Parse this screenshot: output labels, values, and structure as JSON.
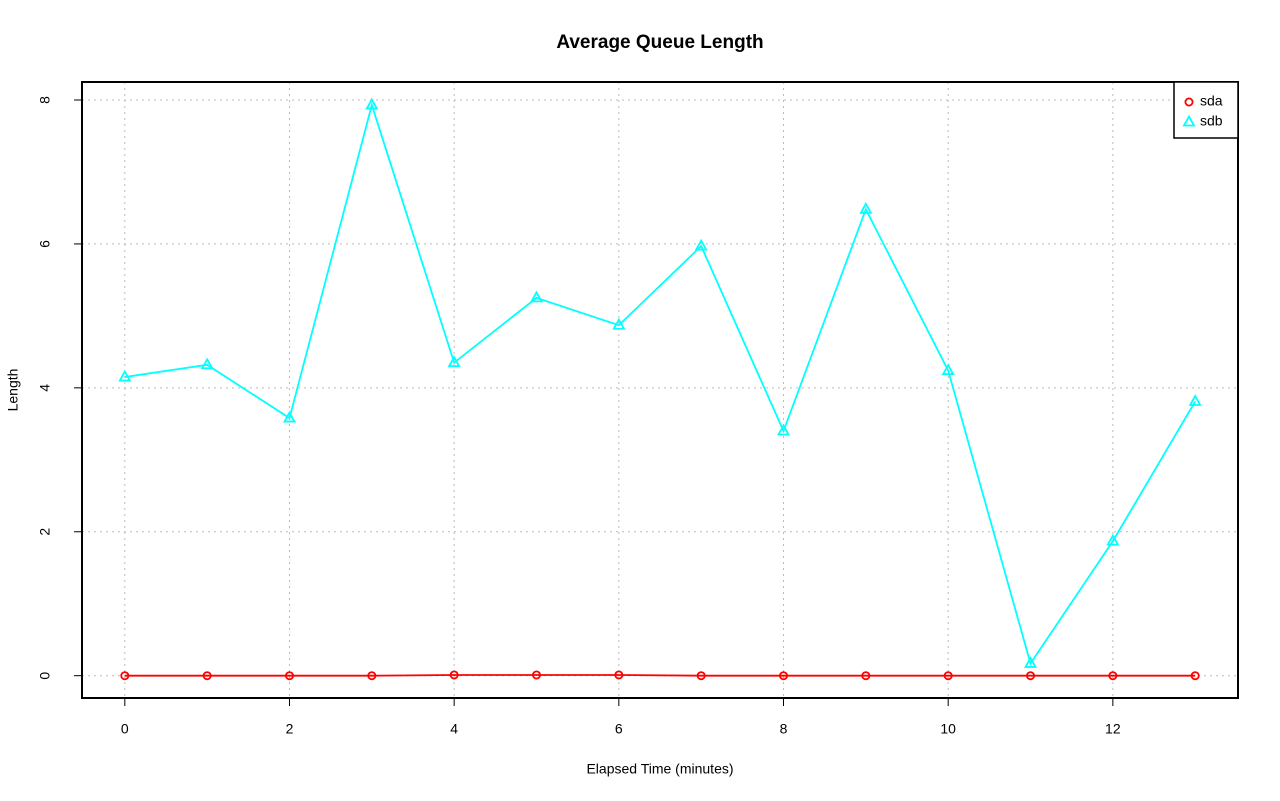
{
  "chart_data": {
    "type": "line",
    "title": "Average Queue Length",
    "xlabel": "Elapsed Time (minutes)",
    "ylabel": "Length",
    "x": [
      0,
      1,
      2,
      3,
      4,
      5,
      6,
      7,
      8,
      9,
      10,
      11,
      12,
      13
    ],
    "series": [
      {
        "name": "sda",
        "color": "#ff0000",
        "marker": "circle",
        "values": [
          0,
          0,
          0,
          0,
          0.01,
          0.01,
          0.01,
          0,
          0,
          0,
          0,
          0,
          0,
          0
        ]
      },
      {
        "name": "sdb",
        "color": "#00ffff",
        "marker": "triangle",
        "values": [
          4.15,
          4.32,
          3.58,
          7.93,
          4.35,
          5.25,
          4.87,
          5.97,
          3.4,
          6.48,
          4.24,
          0.17,
          1.87,
          3.81
        ]
      }
    ],
    "xlim": [
      -0.52,
      13.52
    ],
    "ylim": [
      -0.31,
      8.25
    ],
    "xticks": [
      0,
      2,
      4,
      6,
      8,
      10,
      12
    ],
    "yticks": [
      0,
      2,
      4,
      6,
      8
    ],
    "grid": true,
    "legend": "top-right"
  }
}
